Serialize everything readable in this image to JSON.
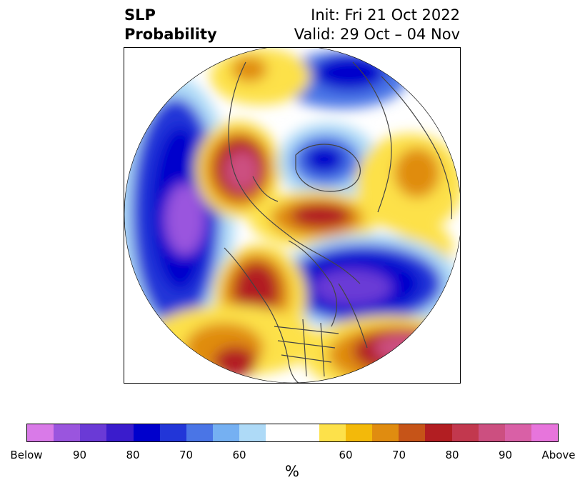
{
  "title": {
    "variable": "SLP",
    "type": "Probability",
    "init": "Init: Fri 21 Oct 2022",
    "valid": "Valid: 29 Oct – 04 Nov"
  },
  "colorbar": {
    "colors": [
      "#d97ae8",
      "#9a55de",
      "#6a3ad6",
      "#3a1ccc",
      "#0000cc",
      "#2236d8",
      "#4a75e6",
      "#75b0f2",
      "#aedaf7",
      "#ffffff",
      "#ffffff",
      "#fde14a",
      "#f3b90a",
      "#e08c10",
      "#c65418",
      "#b21e22",
      "#c2384e",
      "#cc4f80",
      "#d960a6",
      "#e775dc"
    ],
    "labels": [
      "Below",
      "90",
      "80",
      "70",
      "60",
      "60",
      "70",
      "80",
      "90",
      "Above"
    ],
    "unit": "%"
  },
  "map": {
    "projection": "north-polar-stereographic",
    "legend_colors": {
      "strong_below": "#9a55de",
      "below": "#0000cc",
      "weak_below": "#aedaf7",
      "weak_above": "#fde14a",
      "above": "#e08c10",
      "strong_above": "#b21e22",
      "extreme_above": "#cc4f80"
    }
  }
}
